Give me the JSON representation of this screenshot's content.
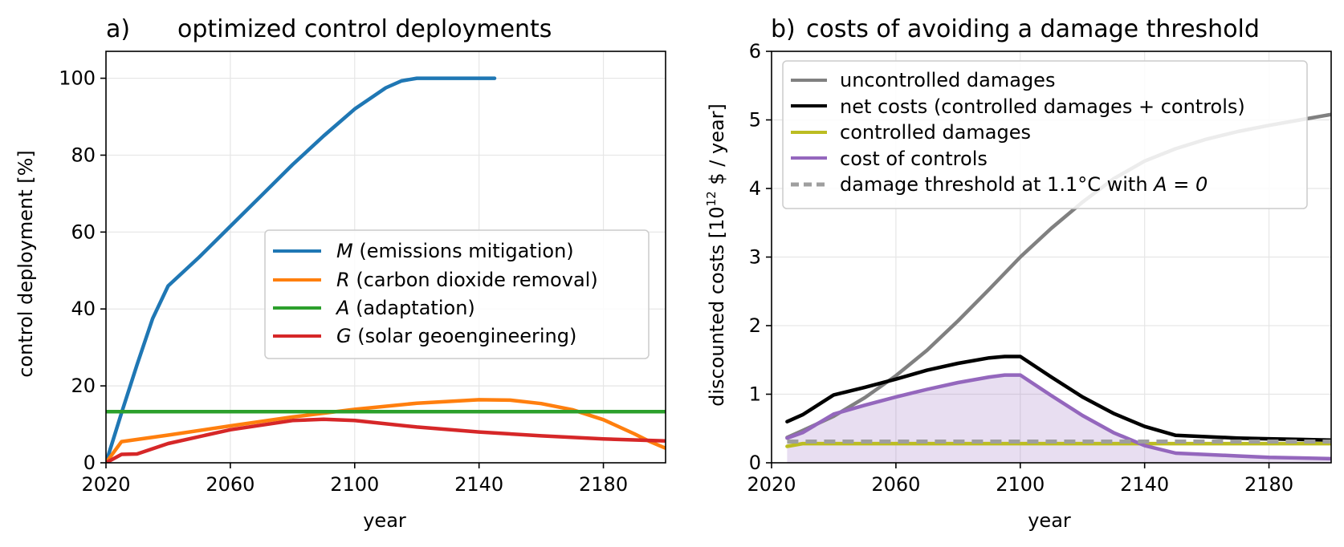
{
  "chart_data": [
    {
      "type": "line",
      "panel_label": "a)",
      "title": "optimized control deployments",
      "xlabel": "year",
      "ylabel": "control deployment [%]",
      "xlim": [
        2020,
        2200
      ],
      "ylim": [
        0,
        107
      ],
      "xticks": [
        2020,
        2060,
        2100,
        2140,
        2180
      ],
      "yticks": [
        0,
        20,
        40,
        60,
        80,
        100
      ],
      "grid": true,
      "legend_position": "center-right",
      "series": [
        {
          "name": "M",
          "label": "(emissions mitigation)",
          "color": "#1f77b4",
          "x": [
            2020,
            2025,
            2030,
            2035,
            2040,
            2050,
            2060,
            2070,
            2080,
            2090,
            2100,
            2110,
            2115,
            2120,
            2130,
            2140,
            2145
          ],
          "y": [
            0,
            13,
            25.5,
            37.5,
            46,
            53.5,
            61.5,
            69.5,
            77.5,
            85,
            92,
            97.5,
            99.3,
            100,
            100,
            100,
            100
          ]
        },
        {
          "name": "R",
          "label": "(carbon dioxide removal)",
          "color": "#ff7f0e",
          "x": [
            2020,
            2025,
            2040,
            2060,
            2080,
            2100,
            2120,
            2140,
            2150,
            2160,
            2170,
            2180,
            2190,
            2195,
            2200
          ],
          "y": [
            0,
            5.5,
            7.2,
            9.6,
            11.9,
            13.9,
            15.5,
            16.4,
            16.3,
            15.4,
            13.8,
            11.2,
            7.5,
            5.5,
            3.8
          ]
        },
        {
          "name": "A",
          "label": "(adaptation)",
          "color": "#2ca02c",
          "x": [
            2020,
            2200
          ],
          "y": [
            13.3,
            13.3
          ]
        },
        {
          "name": "G",
          "label": "(solar geoengineering)",
          "color": "#d62728",
          "x": [
            2020,
            2025,
            2030,
            2040,
            2060,
            2080,
            2090,
            2100,
            2120,
            2140,
            2160,
            2180,
            2200
          ],
          "y": [
            0,
            2.2,
            2.3,
            5,
            8.6,
            11,
            11.3,
            11,
            9.3,
            8,
            7,
            6.2,
            5.7
          ]
        }
      ]
    },
    {
      "type": "line",
      "panel_label": "b)",
      "title": "costs of avoiding a damage threshold",
      "xlabel": "year",
      "ylabel": "discounted costs [10",
      "ylabel_superscript": "12",
      "ylabel_suffix": " $ / year]",
      "xlim": [
        2020,
        2200
      ],
      "ylim": [
        0,
        6
      ],
      "xticks": [
        2020,
        2060,
        2100,
        2140,
        2180
      ],
      "yticks": [
        0,
        1,
        2,
        3,
        4,
        5,
        6
      ],
      "grid": true,
      "legend_position": "top-left",
      "series": [
        {
          "name": "uncontrolled damages",
          "color": "#808080",
          "style": "solid",
          "x": [
            2025,
            2030,
            2040,
            2050,
            2060,
            2070,
            2080,
            2090,
            2100,
            2110,
            2120,
            2130,
            2140,
            2150,
            2160,
            2170,
            2180,
            2190,
            2200
          ],
          "y": [
            0.37,
            0.47,
            0.68,
            0.95,
            1.27,
            1.64,
            2.07,
            2.53,
            3.0,
            3.42,
            3.8,
            4.14,
            4.4,
            4.58,
            4.72,
            4.83,
            4.92,
            5.0,
            5.08
          ]
        },
        {
          "name": "net costs (controlled damages + controls)",
          "color": "#000000",
          "style": "solid",
          "x": [
            2025,
            2030,
            2040,
            2050,
            2060,
            2070,
            2080,
            2090,
            2095,
            2100,
            2110,
            2120,
            2130,
            2140,
            2150,
            2160,
            2170,
            2180,
            2190,
            2200
          ],
          "y": [
            0.6,
            0.7,
            0.99,
            1.1,
            1.22,
            1.35,
            1.45,
            1.53,
            1.55,
            1.55,
            1.25,
            0.96,
            0.72,
            0.53,
            0.4,
            0.38,
            0.36,
            0.35,
            0.34,
            0.33
          ]
        },
        {
          "name": "controlled damages",
          "color": "#bcbd22",
          "style": "solid",
          "x": [
            2025,
            2030,
            2200
          ],
          "y": [
            0.24,
            0.28,
            0.28
          ]
        },
        {
          "name": "cost of controls",
          "color": "#9467bd",
          "style": "solid",
          "fill": true,
          "x": [
            2025,
            2030,
            2040,
            2050,
            2060,
            2070,
            2080,
            2090,
            2095,
            2100,
            2110,
            2120,
            2130,
            2140,
            2150,
            2160,
            2170,
            2180,
            2190,
            2200
          ],
          "y": [
            0.36,
            0.44,
            0.71,
            0.84,
            0.96,
            1.07,
            1.17,
            1.25,
            1.28,
            1.28,
            0.98,
            0.69,
            0.44,
            0.25,
            0.14,
            0.12,
            0.1,
            0.08,
            0.07,
            0.06
          ]
        },
        {
          "name": "damage threshold at 1.1°C with",
          "name_math": "A = 0",
          "color": "#9e9e9e",
          "style": "dashed",
          "x": [
            2025,
            2200
          ],
          "y": [
            0.31,
            0.31
          ]
        }
      ]
    }
  ]
}
